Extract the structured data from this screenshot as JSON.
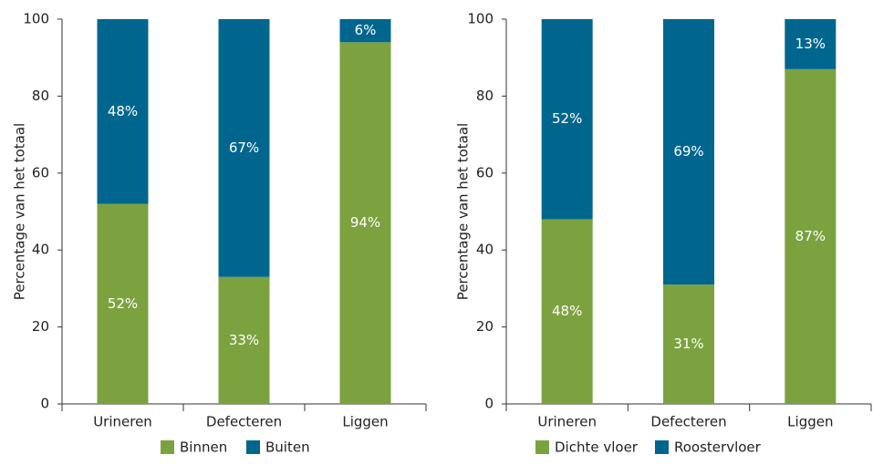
{
  "chart_data": [
    {
      "type": "stacked_bar",
      "ylabel": "Percentage van het totaal",
      "categories": [
        "Urineren",
        "Defecteren",
        "Liggen"
      ],
      "series": [
        {
          "name": "Binnen",
          "color": "#7ba23f",
          "values": [
            52,
            33,
            94
          ],
          "value_labels": [
            "52%",
            "33%",
            "94%"
          ]
        },
        {
          "name": "Buiten",
          "color": "#00668e",
          "values": [
            48,
            67,
            6
          ],
          "value_labels": [
            "48%",
            "67%",
            "6%"
          ]
        }
      ],
      "ylim": [
        0,
        100
      ],
      "yticks": [
        0,
        20,
        40,
        60,
        80,
        100
      ]
    },
    {
      "type": "stacked_bar",
      "ylabel": "Percentage van het totaal",
      "categories": [
        "Urineren",
        "Defecteren",
        "Liggen"
      ],
      "series": [
        {
          "name": "Dichte vloer",
          "color": "#7ba23f",
          "values": [
            48,
            31,
            87
          ],
          "value_labels": [
            "48%",
            "31%",
            "87%"
          ]
        },
        {
          "name": "Roostervloer",
          "color": "#00668e",
          "values": [
            52,
            69,
            13
          ],
          "value_labels": [
            "52%",
            "69%",
            "13%"
          ]
        }
      ],
      "ylim": [
        0,
        100
      ],
      "yticks": [
        0,
        20,
        40,
        60,
        80,
        100
      ]
    }
  ]
}
